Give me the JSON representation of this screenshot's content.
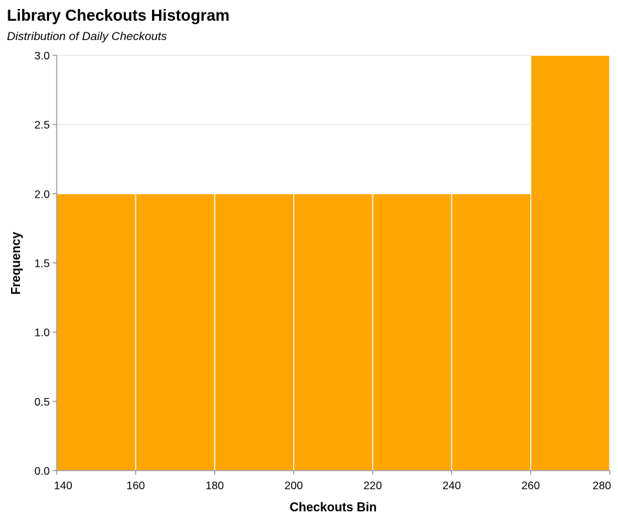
{
  "chart_data": {
    "type": "bar",
    "title": "Library Checkouts Histogram",
    "subtitle": "Distribution of Daily Checkouts",
    "xlabel": "Checkouts Bin",
    "ylabel": "Frequency",
    "bins": [
      {
        "start": 140,
        "end": 160,
        "value": 2
      },
      {
        "start": 160,
        "end": 180,
        "value": 2
      },
      {
        "start": 180,
        "end": 200,
        "value": 2
      },
      {
        "start": 200,
        "end": 220,
        "value": 2
      },
      {
        "start": 220,
        "end": 240,
        "value": 2
      },
      {
        "start": 240,
        "end": 260,
        "value": 2
      },
      {
        "start": 260,
        "end": 280,
        "value": 3
      }
    ],
    "xlim": [
      140,
      280
    ],
    "ylim": [
      0,
      3
    ],
    "x_ticks": [
      "140",
      "160",
      "180",
      "200",
      "220",
      "240",
      "260",
      "280"
    ],
    "y_ticks": [
      "0.0",
      "0.5",
      "1.0",
      "1.5",
      "2.0",
      "2.5",
      "3.0"
    ],
    "bar_color": "#ffa500",
    "grid": true
  }
}
